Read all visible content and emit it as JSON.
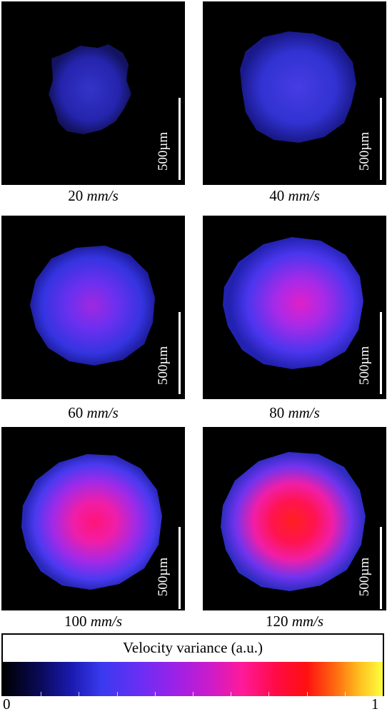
{
  "panels": [
    {
      "speed": "20",
      "unit": "mm/s",
      "scale_bar_label": "500µm",
      "intensity": 0.08
    },
    {
      "speed": "40",
      "unit": "mm/s",
      "scale_bar_label": "500µm",
      "intensity": 0.16
    },
    {
      "speed": "60",
      "unit": "mm/s",
      "scale_bar_label": "500µm",
      "intensity": 0.28
    },
    {
      "speed": "80",
      "unit": "mm/s",
      "scale_bar_label": "500µm",
      "intensity": 0.4
    },
    {
      "speed": "100",
      "unit": "mm/s",
      "scale_bar_label": "500µm",
      "intensity": 0.58
    },
    {
      "speed": "120",
      "unit": "mm/s",
      "scale_bar_label": "500µm",
      "intensity": 0.72
    }
  ],
  "colorbar": {
    "title": "Velocity variance (a.u.)",
    "min_label": "0",
    "max_label": "1"
  },
  "colors": {
    "background": "#000000",
    "low": "#2020c0",
    "mid": "#c020d0",
    "high": "#ff1030",
    "scale_bar": "#ffffff"
  }
}
